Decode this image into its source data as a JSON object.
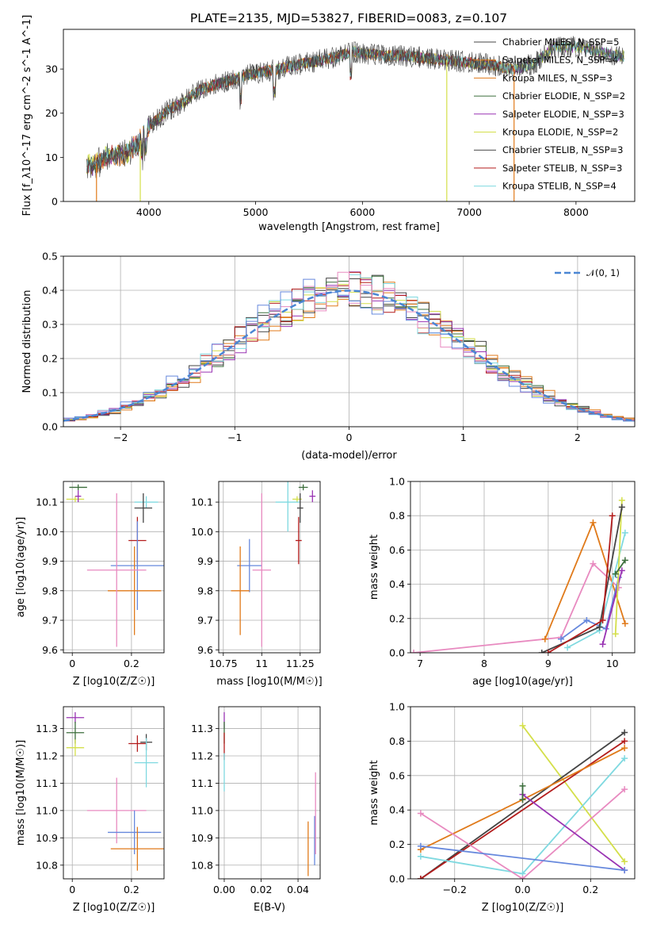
{
  "figure_title": "PLATE=2135, MJD=53827, FIBERID=0083, z=0.107",
  "chart_data": [
    {
      "id": "spectrum",
      "type": "line",
      "xlabel": "wavelength [Angstrom, rest frame]",
      "ylabel": "Flux [f_λ10^-17 erg cm^-2 s^-1 A^-1]",
      "xlim": [
        3200,
        8550
      ],
      "ylim": [
        0,
        39
      ],
      "xticks": [
        4000,
        5000,
        6000,
        7000,
        8000
      ],
      "yticks": [
        0,
        10,
        20,
        30
      ],
      "series_names": [
        "Chabrier MILES, N_SSP=5",
        "Salpeter MILES, N_SSP=4",
        "Kroupa MILES, N_SSP=3",
        "Chabrier ELODIE, N_SSP=2",
        "Salpeter ELODIE, N_SSP=3",
        "Kroupa ELODIE, N_SSP=2",
        "Chabrier STELIB, N_SSP=3",
        "Salpeter STELIB, N_SSP=3",
        "Kroupa STELIB, N_SSP=4"
      ],
      "continuum": [
        [
          3400,
          8
        ],
        [
          3500,
          8.5
        ],
        [
          3600,
          10
        ],
        [
          3800,
          11
        ],
        [
          3900,
          13
        ],
        [
          4000,
          17
        ],
        [
          4100,
          19
        ],
        [
          4200,
          21
        ],
        [
          4300,
          22
        ],
        [
          4400,
          24
        ],
        [
          4500,
          25.5
        ],
        [
          4700,
          27
        ],
        [
          4900,
          28.5
        ],
        [
          5000,
          29
        ],
        [
          5200,
          30
        ],
        [
          5400,
          31
        ],
        [
          5600,
          32
        ],
        [
          5800,
          33
        ],
        [
          5900,
          34
        ],
        [
          6000,
          33.5
        ],
        [
          6200,
          33
        ],
        [
          6400,
          33
        ],
        [
          6600,
          32.5
        ],
        [
          6800,
          32
        ],
        [
          7000,
          31.5
        ],
        [
          7200,
          31
        ],
        [
          7400,
          30
        ],
        [
          7600,
          31
        ],
        [
          7800,
          35
        ],
        [
          8000,
          35
        ],
        [
          8200,
          34
        ],
        [
          8400,
          33
        ]
      ],
      "drops": [
        [
          3510,
          0
        ],
        [
          3920,
          0
        ],
        [
          6790,
          0
        ],
        [
          7420,
          0
        ]
      ]
    },
    {
      "id": "residuals",
      "type": "line",
      "xlabel": "(data-model)/error",
      "ylabel": "Normed distribution",
      "xlim": [
        -2.5,
        2.5
      ],
      "ylim": [
        0,
        0.5
      ],
      "xticks": [
        -2,
        -1,
        0,
        1,
        2
      ],
      "yticks": [
        0,
        0.1,
        0.2,
        0.3,
        0.4,
        0.5
      ],
      "xtick_labels": [
        "−2",
        "−1",
        "0",
        "1",
        "2"
      ],
      "legend": "𝒩(0, 1)"
    },
    {
      "id": "age-vs-Z",
      "type": "scatter",
      "xlabel": "Z [log10(Z/Z☉)]",
      "ylabel": "age [log10(age/yr)]",
      "xlim": [
        -0.03,
        0.31
      ],
      "ylim": [
        9.59,
        10.17
      ],
      "xticks": [
        0.0,
        0.2
      ],
      "yticks": [
        9.6,
        9.7,
        9.8,
        9.9,
        10.0,
        10.1
      ],
      "points": [
        {
          "c": "#3c6e3c",
          "x": 0.02,
          "y": 10.15,
          "ex": 0.03,
          "ey": 0.01
        },
        {
          "c": "#d4df4a",
          "x": 0.01,
          "y": 10.11,
          "ex": 0.03,
          "ey": 0.01
        },
        {
          "c": "#9933b3",
          "x": 0.02,
          "y": 10.12,
          "ex": 0.01,
          "ey": 0.02
        },
        {
          "c": "#7fd9e0",
          "x": 0.25,
          "y": 10.1,
          "ex": 0.04,
          "ey": 0.02
        },
        {
          "c": "#444444",
          "x": 0.24,
          "y": 10.08,
          "ex": 0.03,
          "ey": 0.05
        },
        {
          "c": "#b31c1c",
          "x": 0.22,
          "y": 9.97,
          "ex": 0.03,
          "ey": 0.08
        },
        {
          "c": "#6688dd",
          "x": 0.22,
          "y": 9.885,
          "ex": 0.09,
          "ey": 0.15
        },
        {
          "c": "#e07a1a",
          "x": 0.21,
          "y": 9.8,
          "ex": 0.09,
          "ey": 0.15
        },
        {
          "c": "#e88ac0",
          "x": 0.15,
          "y": 9.87,
          "ex": 0.1,
          "ey": 0.26
        }
      ]
    },
    {
      "id": "age-vs-mass",
      "type": "scatter",
      "xlabel": "mass [log10(M/M☉)]",
      "ylabel": "",
      "xlim": [
        10.72,
        11.38
      ],
      "ylim": [
        9.59,
        10.17
      ],
      "xticks": [
        10.75,
        11.0,
        11.25
      ],
      "yticks": [
        9.6,
        9.7,
        9.8,
        9.9,
        10.0,
        10.1
      ],
      "points": [
        {
          "c": "#3c6e3c",
          "x": 11.27,
          "y": 10.15,
          "ex": 0.03,
          "ey": 0.01
        },
        {
          "c": "#d4df4a",
          "x": 11.23,
          "y": 10.11,
          "ex": 0.03,
          "ey": 0.01
        },
        {
          "c": "#9933b3",
          "x": 11.33,
          "y": 10.12,
          "ex": 0.02,
          "ey": 0.02
        },
        {
          "c": "#7fd9e0",
          "x": 11.17,
          "y": 10.1,
          "ex": 0.08,
          "ey": 0.1
        },
        {
          "c": "#444444",
          "x": 11.25,
          "y": 10.08,
          "ex": 0.02,
          "ey": 0.05
        },
        {
          "c": "#b31c1c",
          "x": 11.24,
          "y": 9.97,
          "ex": 0.02,
          "ey": 0.08
        },
        {
          "c": "#6688dd",
          "x": 10.92,
          "y": 9.885,
          "ex": 0.08,
          "ey": 0.09
        },
        {
          "c": "#e07a1a",
          "x": 10.86,
          "y": 9.8,
          "ex": 0.06,
          "ey": 0.15
        },
        {
          "c": "#e88ac0",
          "x": 11.0,
          "y": 9.87,
          "ex": 0.06,
          "ey": 0.26
        }
      ]
    },
    {
      "id": "mw-vs-age",
      "type": "line",
      "xlabel": "age [log10(age/yr)]",
      "ylabel": "mass weight",
      "xlim": [
        6.85,
        10.35
      ],
      "ylim": [
        0,
        1
      ],
      "xticks": [
        7,
        8,
        9,
        10
      ],
      "yticks": [
        0,
        0.2,
        0.4,
        0.6,
        0.8,
        1.0
      ],
      "series": [
        {
          "c": "#e88ac0",
          "pts": [
            [
              6.9,
              0
            ],
            [
              9.2,
              0.09
            ],
            [
              9.7,
              0.52
            ],
            [
              10.1,
              0.38
            ]
          ]
        },
        {
          "c": "#e07a1a",
          "pts": [
            [
              8.95,
              0.08
            ],
            [
              9.7,
              0.76
            ],
            [
              10.2,
              0.17
            ]
          ]
        },
        {
          "c": "#6688dd",
          "pts": [
            [
              9.2,
              0.08
            ],
            [
              9.6,
              0.19
            ],
            [
              9.9,
              0.14
            ],
            [
              10.1,
              0.44
            ]
          ]
        },
        {
          "c": "#7fd9e0",
          "pts": [
            [
              9.3,
              0.03
            ],
            [
              9.8,
              0.13
            ],
            [
              10.2,
              0.7
            ]
          ]
        },
        {
          "c": "#9933b3",
          "pts": [
            [
              9.85,
              0.05
            ],
            [
              10.15,
              0.48
            ]
          ]
        },
        {
          "c": "#d4df4a",
          "pts": [
            [
              10.05,
              0.11
            ],
            [
              10.15,
              0.89
            ]
          ]
        },
        {
          "c": "#444444",
          "pts": [
            [
              8.9,
              0
            ],
            [
              9.8,
              0.15
            ],
            [
              10.15,
              0.85
            ]
          ]
        },
        {
          "c": "#b31c1c",
          "pts": [
            [
              9.0,
              0
            ],
            [
              9.85,
              0.19
            ],
            [
              10.0,
              0.8
            ]
          ]
        },
        {
          "c": "#3c6e3c",
          "pts": [
            [
              10.05,
              0.46
            ],
            [
              10.2,
              0.54
            ]
          ]
        }
      ]
    },
    {
      "id": "mass-vs-Z",
      "type": "scatter",
      "xlabel": "Z [log10(Z/Z☉)]",
      "ylabel": "mass [log10(M/M☉)]",
      "xlim": [
        -0.03,
        0.31
      ],
      "ylim": [
        10.75,
        11.38
      ],
      "xticks": [
        0.0,
        0.2
      ],
      "yticks": [
        10.8,
        10.9,
        11.0,
        11.1,
        11.2,
        11.3
      ],
      "points": [
        {
          "c": "#9933b3",
          "x": 0.01,
          "y": 11.34,
          "ex": 0.03,
          "ey": 0.02
        },
        {
          "c": "#3c6e3c",
          "x": 0.01,
          "y": 11.285,
          "ex": 0.03,
          "ey": 0.04
        },
        {
          "c": "#d4df4a",
          "x": 0.01,
          "y": 11.23,
          "ex": 0.03,
          "ey": 0.03
        },
        {
          "c": "#444444",
          "x": 0.25,
          "y": 11.25,
          "ex": 0.02,
          "ey": 0.03
        },
        {
          "c": "#b31c1c",
          "x": 0.22,
          "y": 11.245,
          "ex": 0.03,
          "ey": 0.03
        },
        {
          "c": "#7fd9e0",
          "x": 0.25,
          "y": 11.175,
          "ex": 0.04,
          "ey": 0.09
        },
        {
          "c": "#e88ac0",
          "x": 0.15,
          "y": 11.0,
          "ex": 0.1,
          "ey": 0.12
        },
        {
          "c": "#6688dd",
          "x": 0.21,
          "y": 10.92,
          "ex": 0.09,
          "ey": 0.08
        },
        {
          "c": "#e07a1a",
          "x": 0.22,
          "y": 10.86,
          "ex": 0.09,
          "ey": 0.08
        }
      ]
    },
    {
      "id": "mass-vs-EBV",
      "type": "scatter",
      "xlabel": "E(B-V)",
      "ylabel": "",
      "xlim": [
        -0.003,
        0.052
      ],
      "ylim": [
        10.75,
        11.38
      ],
      "xticks": [
        0.0,
        0.02,
        0.04
      ],
      "yticks": [
        10.8,
        10.9,
        11.0,
        11.1,
        11.2,
        11.3
      ],
      "xtick_labels": [
        "0.00",
        "0.02",
        "0.04"
      ],
      "points": [
        {
          "c": "#9933b3",
          "x": 0.0,
          "y": 11.33,
          "ex": 0,
          "ey": 0.03
        },
        {
          "c": "#3c6e3c",
          "x": 0.0,
          "y": 11.285,
          "ex": 0,
          "ey": 0.04
        },
        {
          "c": "#b31c1c",
          "x": 0.0,
          "y": 11.235,
          "ex": 0,
          "ey": 0.05
        },
        {
          "c": "#7fd9e0",
          "x": 0.0,
          "y": 11.14,
          "ex": 0,
          "ey": 0.07
        },
        {
          "c": "#e07a1a",
          "x": 0.0455,
          "y": 10.86,
          "ex": 0,
          "ey": 0.1
        },
        {
          "c": "#6688dd",
          "x": 0.049,
          "y": 10.89,
          "ex": 0,
          "ey": 0.09
        },
        {
          "c": "#e88ac0",
          "x": 0.0495,
          "y": 10.99,
          "ex": 0,
          "ey": 0.15
        }
      ]
    },
    {
      "id": "mw-vs-Z",
      "type": "line",
      "xlabel": "Z [log10(Z/Z☉)]",
      "ylabel": "mass weight",
      "xlim": [
        -0.33,
        0.33
      ],
      "ylim": [
        0,
        1
      ],
      "xticks": [
        -0.2,
        0.0,
        0.2
      ],
      "yticks": [
        0,
        0.2,
        0.4,
        0.6,
        0.8,
        1.0
      ],
      "xtick_labels": [
        "−0.2",
        "0.0",
        "0.2"
      ],
      "series": [
        {
          "c": "#d4df4a",
          "pts": [
            [
              0,
              0.89
            ],
            [
              0.3,
              0.1
            ]
          ]
        },
        {
          "c": "#444444",
          "pts": [
            [
              -0.3,
              0
            ],
            [
              0.3,
              0.85
            ]
          ]
        },
        {
          "c": "#b31c1c",
          "pts": [
            [
              -0.3,
              0
            ],
            [
              0.3,
              0.8
            ]
          ]
        },
        {
          "c": "#e07a1a",
          "pts": [
            [
              -0.3,
              0.17
            ],
            [
              0,
              0.46
            ],
            [
              0.3,
              0.76
            ]
          ]
        },
        {
          "c": "#7fd9e0",
          "pts": [
            [
              -0.3,
              0.13
            ],
            [
              0,
              0.03
            ],
            [
              0.3,
              0.7
            ]
          ]
        },
        {
          "c": "#e88ac0",
          "pts": [
            [
              -0.3,
              0.38
            ],
            [
              0,
              0
            ],
            [
              0.3,
              0.52
            ]
          ]
        },
        {
          "c": "#9933b3",
          "pts": [
            [
              0,
              0.49
            ],
            [
              0.3,
              0.05
            ]
          ]
        },
        {
          "c": "#6688dd",
          "pts": [
            [
              -0.3,
              0.19
            ],
            [
              0.3,
              0.05
            ]
          ]
        },
        {
          "c": "#3c6e3c",
          "pts": [
            [
              0,
              0.54
            ],
            [
              0,
              0.46
            ]
          ]
        }
      ]
    }
  ],
  "colors": [
    "#444444",
    "#e07a1a",
    "#e07a1a",
    "#3c6e3c",
    "#9933b3",
    "#d4df4a",
    "#444444",
    "#b31c1c",
    "#7fd9e0"
  ]
}
